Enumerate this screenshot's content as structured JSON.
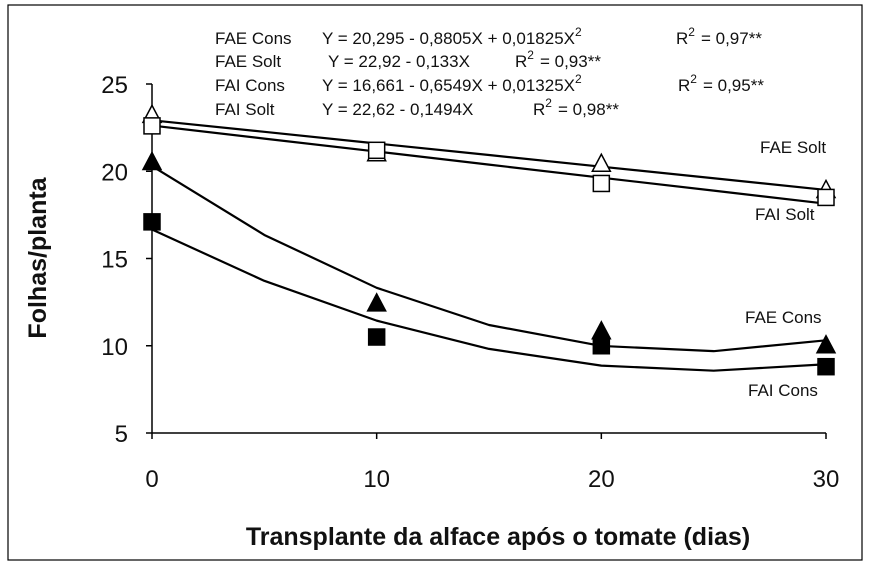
{
  "chart_data": {
    "type": "scatter",
    "x_label": "Transplante da alface após o tomate (dias)",
    "y_label": "Folhas/planta",
    "x": [
      0,
      10,
      20,
      30
    ],
    "xlim": [
      0,
      30
    ],
    "xticks": [
      0,
      10,
      20,
      30
    ],
    "ylim": [
      5,
      25
    ],
    "yticks": [
      5,
      10,
      15,
      20,
      25
    ],
    "fit_x": [
      0,
      5,
      10,
      15,
      20,
      25,
      30
    ],
    "superscript": "2",
    "r_symbol": "R",
    "equations": [
      {
        "label": "FAE Cons",
        "equation": "Y = 20,295  - 0,8805X + 0,01825X",
        "squared": true,
        "r2": "= 0,97**"
      },
      {
        "label": "FAE Solt",
        "equation": "Y = 22,92  - 0,133X",
        "squared": false,
        "r2": "= 0,93**"
      },
      {
        "label": "FAI  Cons",
        "equation": "Y = 16,661  - 0,6549X + 0,01325X",
        "squared": true,
        "r2": "= 0,95**"
      },
      {
        "label": "FAI  Solt",
        "equation": "Y = 22,62  - 0,1494X",
        "squared": false,
        "r2": "= 0,98**"
      }
    ],
    "series": [
      {
        "name": "FAE Cons",
        "color": "#000000",
        "marker": "triangle",
        "filled": true,
        "values": [
          20.5,
          12.4,
          10.8,
          10.0
        ],
        "fit_values": [
          20.3,
          16.35,
          13.32,
          11.19,
          9.99,
          9.69,
          10.31
        ]
      },
      {
        "name": "FAI Cons",
        "color": "#000000",
        "marker": "square",
        "filled": true,
        "values": [
          17.1,
          10.5,
          10.0,
          8.8
        ],
        "fit_values": [
          16.66,
          13.72,
          11.44,
          9.82,
          8.86,
          8.57,
          8.94
        ]
      },
      {
        "name": "FAE Solt",
        "color": "#000000",
        "marker": "triangle",
        "filled": false,
        "values": [
          23.2,
          21.0,
          20.4,
          18.9
        ],
        "fit_values": [
          22.92,
          22.26,
          21.59,
          20.93,
          20.26,
          19.6,
          18.93
        ]
      },
      {
        "name": "FAI Solt",
        "color": "#000000",
        "marker": "square",
        "filled": false,
        "values": [
          22.6,
          21.2,
          19.3,
          18.5
        ],
        "fit_values": [
          22.62,
          21.87,
          21.13,
          20.38,
          19.63,
          18.89,
          18.14
        ]
      }
    ]
  }
}
